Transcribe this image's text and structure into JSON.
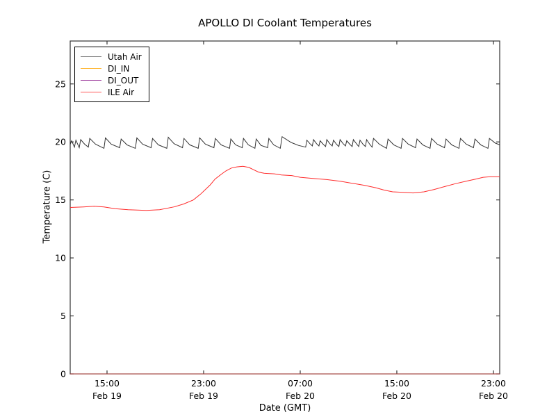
{
  "chart_data": {
    "type": "line",
    "title": "APOLLO DI Coolant Temperatures",
    "xlabel": "Date (GMT)",
    "ylabel": "Temperature (C)",
    "grid": false,
    "legend_position": "upper left",
    "ylim": [
      0,
      28.7
    ],
    "y_ticks": [
      0,
      5,
      10,
      15,
      20,
      25
    ],
    "xlim_hours": [
      0,
      35.57
    ],
    "x_ticks_hours": [
      3.05,
      11.05,
      19.05,
      27.05,
      35.05
    ],
    "x_tick_labels": [
      {
        "time": "15:00",
        "date": "Feb 19"
      },
      {
        "time": "23:00",
        "date": "Feb 19"
      },
      {
        "time": "07:00",
        "date": "Feb 20"
      },
      {
        "time": "15:00",
        "date": "Feb 20"
      },
      {
        "time": "23:00",
        "date": "Feb 20"
      }
    ],
    "series": [
      {
        "name": "Utah Air",
        "color": "#333333",
        "legend_color": "#808080",
        "points": [
          [
            0,
            19.78
          ],
          [
            0.12,
            20.1
          ],
          [
            0.35,
            19.55
          ],
          [
            0.47,
            20.15
          ],
          [
            0.75,
            19.5
          ],
          [
            0.87,
            20.2
          ],
          [
            1.2,
            19.8
          ],
          [
            1.5,
            19.55
          ],
          [
            1.62,
            20.3
          ],
          [
            2.1,
            19.8
          ],
          [
            2.8,
            19.45
          ],
          [
            2.92,
            20.35
          ],
          [
            3.4,
            19.8
          ],
          [
            4.1,
            19.5
          ],
          [
            4.22,
            20.25
          ],
          [
            4.7,
            19.75
          ],
          [
            5.4,
            19.45
          ],
          [
            5.52,
            20.35
          ],
          [
            6.0,
            19.8
          ],
          [
            6.7,
            19.5
          ],
          [
            6.82,
            20.3
          ],
          [
            7.3,
            19.75
          ],
          [
            8.0,
            19.45
          ],
          [
            8.12,
            20.4
          ],
          [
            8.6,
            19.85
          ],
          [
            9.3,
            19.5
          ],
          [
            9.42,
            20.3
          ],
          [
            9.9,
            19.75
          ],
          [
            10.6,
            19.45
          ],
          [
            10.72,
            20.35
          ],
          [
            11.2,
            19.8
          ],
          [
            11.9,
            19.5
          ],
          [
            12.02,
            20.3
          ],
          [
            12.5,
            19.75
          ],
          [
            13.2,
            19.45
          ],
          [
            13.3,
            20.25
          ],
          [
            13.7,
            19.75
          ],
          [
            14.25,
            19.5
          ],
          [
            14.35,
            20.3
          ],
          [
            14.75,
            19.75
          ],
          [
            15.3,
            19.45
          ],
          [
            15.4,
            20.25
          ],
          [
            15.8,
            19.7
          ],
          [
            16.35,
            19.5
          ],
          [
            16.45,
            20.3
          ],
          [
            16.85,
            19.75
          ],
          [
            17.4,
            19.45
          ],
          [
            17.55,
            20.45
          ],
          [
            18.3,
            19.95
          ],
          [
            18.9,
            19.7
          ],
          [
            19.5,
            19.55
          ],
          [
            19.6,
            20.15
          ],
          [
            19.85,
            19.85
          ],
          [
            20.05,
            19.65
          ],
          [
            20.15,
            20.2
          ],
          [
            20.4,
            19.85
          ],
          [
            20.6,
            19.65
          ],
          [
            20.7,
            20.1
          ],
          [
            20.95,
            19.8
          ],
          [
            21.15,
            19.6
          ],
          [
            21.25,
            20.2
          ],
          [
            21.5,
            19.85
          ],
          [
            21.7,
            19.65
          ],
          [
            21.8,
            20.15
          ],
          [
            22.05,
            19.8
          ],
          [
            22.25,
            19.6
          ],
          [
            22.35,
            20.2
          ],
          [
            22.6,
            19.85
          ],
          [
            22.8,
            19.65
          ],
          [
            22.9,
            20.1
          ],
          [
            23.15,
            19.8
          ],
          [
            23.35,
            19.6
          ],
          [
            23.45,
            20.2
          ],
          [
            23.7,
            19.85
          ],
          [
            23.9,
            19.6
          ],
          [
            24.0,
            20.15
          ],
          [
            24.25,
            19.8
          ],
          [
            24.45,
            19.6
          ],
          [
            24.55,
            20.2
          ],
          [
            24.8,
            19.8
          ],
          [
            25.0,
            19.55
          ],
          [
            25.12,
            20.3
          ],
          [
            25.6,
            19.8
          ],
          [
            26.2,
            19.45
          ],
          [
            26.32,
            20.25
          ],
          [
            26.8,
            19.75
          ],
          [
            27.4,
            19.45
          ],
          [
            27.52,
            20.3
          ],
          [
            28.0,
            19.8
          ],
          [
            28.6,
            19.5
          ],
          [
            28.72,
            20.25
          ],
          [
            29.2,
            19.75
          ],
          [
            29.8,
            19.45
          ],
          [
            29.92,
            20.3
          ],
          [
            30.4,
            19.8
          ],
          [
            31.0,
            19.5
          ],
          [
            31.12,
            20.25
          ],
          [
            31.6,
            19.75
          ],
          [
            32.2,
            19.45
          ],
          [
            32.32,
            20.3
          ],
          [
            32.8,
            19.8
          ],
          [
            33.4,
            19.5
          ],
          [
            33.52,
            20.25
          ],
          [
            34.0,
            19.75
          ],
          [
            34.6,
            19.45
          ],
          [
            34.72,
            20.3
          ],
          [
            35.2,
            19.9
          ],
          [
            35.57,
            19.75
          ]
        ]
      },
      {
        "name": "DI_IN",
        "color": "#ffa500",
        "legend_color": "#ffb732",
        "points": [
          [
            0,
            0
          ],
          [
            35.57,
            0
          ]
        ]
      },
      {
        "name": "DI_OUT",
        "color": "#800080",
        "legend_color": "#993399",
        "points": [
          [
            0,
            0
          ],
          [
            35.57,
            0
          ]
        ]
      },
      {
        "name": "ILE Air",
        "color": "#ff2a2a",
        "legend_color": "#ff5555",
        "points": [
          [
            0,
            14.35
          ],
          [
            1.1,
            14.4
          ],
          [
            2.0,
            14.45
          ],
          [
            2.8,
            14.4
          ],
          [
            3.7,
            14.25
          ],
          [
            4.8,
            14.15
          ],
          [
            6.3,
            14.1
          ],
          [
            7.4,
            14.15
          ],
          [
            8.6,
            14.4
          ],
          [
            9.4,
            14.65
          ],
          [
            10.2,
            15.0
          ],
          [
            10.8,
            15.5
          ],
          [
            11.2,
            15.9
          ],
          [
            11.6,
            16.3
          ],
          [
            12.0,
            16.8
          ],
          [
            12.5,
            17.2
          ],
          [
            12.9,
            17.5
          ],
          [
            13.35,
            17.75
          ],
          [
            13.8,
            17.85
          ],
          [
            14.3,
            17.9
          ],
          [
            14.8,
            17.8
          ],
          [
            15.2,
            17.6
          ],
          [
            15.6,
            17.4
          ],
          [
            16.05,
            17.3
          ],
          [
            16.9,
            17.25
          ],
          [
            17.5,
            17.15
          ],
          [
            18.35,
            17.1
          ],
          [
            19.05,
            16.95
          ],
          [
            20.1,
            16.85
          ],
          [
            21.25,
            16.75
          ],
          [
            22.4,
            16.6
          ],
          [
            23.55,
            16.4
          ],
          [
            24.4,
            16.25
          ],
          [
            25.3,
            16.05
          ],
          [
            26.0,
            15.85
          ],
          [
            26.7,
            15.7
          ],
          [
            27.6,
            15.65
          ],
          [
            28.4,
            15.6
          ],
          [
            29.3,
            15.7
          ],
          [
            30.15,
            15.9
          ],
          [
            31.0,
            16.15
          ],
          [
            31.9,
            16.4
          ],
          [
            32.75,
            16.6
          ],
          [
            33.6,
            16.8
          ],
          [
            34.2,
            16.95
          ],
          [
            34.8,
            17.0
          ],
          [
            35.57,
            17.0
          ]
        ]
      }
    ]
  }
}
